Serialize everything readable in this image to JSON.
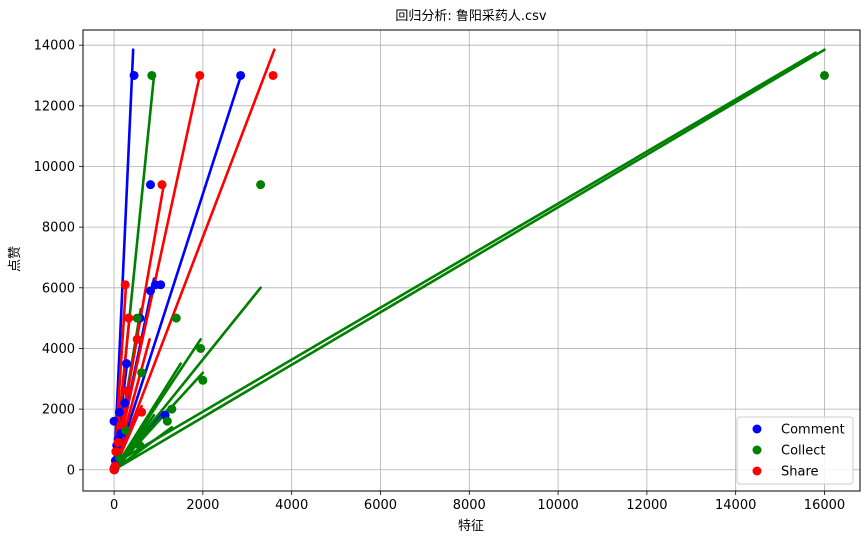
{
  "chart_data": {
    "type": "scatter",
    "title": "回归分析: 鲁阳采药人.csv",
    "xlabel": "特征",
    "ylabel": "点赞",
    "xlim": [
      -700,
      16800
    ],
    "ylim": [
      -700,
      14500
    ],
    "xticks": [
      0,
      2000,
      4000,
      6000,
      8000,
      10000,
      12000,
      14000,
      16000
    ],
    "yticks": [
      0,
      2000,
      4000,
      6000,
      8000,
      10000,
      12000,
      14000
    ],
    "grid": true,
    "legend_position": "bottom-right",
    "series": [
      {
        "name": "Comment",
        "color": "#0000ff",
        "points": [
          [
            450,
            13000
          ],
          [
            2850,
            13000
          ],
          [
            820,
            9400
          ],
          [
            1050,
            6100
          ],
          [
            930,
            6100
          ],
          [
            820,
            5900
          ],
          [
            580,
            5000
          ],
          [
            1150,
            1800
          ],
          [
            280,
            3500
          ],
          [
            0,
            1600
          ],
          [
            120,
            1900
          ],
          [
            60,
            800
          ],
          [
            30,
            300
          ],
          [
            10,
            0
          ],
          [
            0,
            50
          ],
          [
            150,
            1200
          ],
          [
            240,
            2200
          ],
          [
            90,
            1000
          ]
        ],
        "fit_lines": [
          [
            [
              0,
              0
            ],
            [
              430,
              13850
            ]
          ],
          [
            [
              0,
              0
            ],
            [
              2870,
              13050
            ]
          ],
          [
            [
              0,
              0
            ],
            [
              900,
              6300
            ]
          ],
          [
            [
              0,
              0
            ],
            [
              600,
              5100
            ]
          ],
          [
            [
              0,
              0
            ],
            [
              300,
              3600
            ]
          ],
          [
            [
              0,
              0
            ],
            [
              1100,
              1900
            ]
          ]
        ]
      },
      {
        "name": "Collect",
        "color": "#008000",
        "points": [
          [
            16000,
            13000
          ],
          [
            850,
            13000
          ],
          [
            3300,
            9400
          ],
          [
            1400,
            5000
          ],
          [
            1950,
            4000
          ],
          [
            2000,
            2950
          ],
          [
            1300,
            2000
          ],
          [
            1200,
            1600
          ],
          [
            580,
            800
          ],
          [
            620,
            3200
          ],
          [
            120,
            400
          ],
          [
            30,
            80
          ],
          [
            260,
            1300
          ],
          [
            160,
            350
          ],
          [
            520,
            5000
          ],
          [
            0,
            0
          ]
        ],
        "fit_lines": [
          [
            [
              0,
              0
            ],
            [
              16000,
              13850
            ]
          ],
          [
            [
              0,
              200
            ],
            [
              15800,
              13750
            ]
          ],
          [
            [
              0,
              0
            ],
            [
              900,
              13000
            ]
          ],
          [
            [
              0,
              0
            ],
            [
              3300,
              6000
            ]
          ],
          [
            [
              0,
              0
            ],
            [
              1950,
              4300
            ]
          ],
          [
            [
              0,
              0
            ],
            [
              2000,
              3200
            ]
          ],
          [
            [
              0,
              0
            ],
            [
              1500,
              3500
            ]
          ],
          [
            [
              0,
              0
            ],
            [
              1250,
              2050
            ]
          ],
          [
            [
              0,
              0
            ],
            [
              1300,
              1400
            ]
          ],
          [
            [
              0,
              0
            ],
            [
              600,
              5300
            ]
          ],
          [
            [
              0,
              0
            ],
            [
              900,
              1800
            ]
          ],
          [
            [
              0,
              0
            ],
            [
              520,
              1000
            ]
          ]
        ]
      },
      {
        "name": "Share",
        "color": "#ff0000",
        "points": [
          [
            1930,
            13000
          ],
          [
            3580,
            13000
          ],
          [
            1080,
            9400
          ],
          [
            250,
            6100
          ],
          [
            330,
            5000
          ],
          [
            620,
            1900
          ],
          [
            0,
            0
          ],
          [
            40,
            600
          ],
          [
            90,
            900
          ],
          [
            160,
            1500
          ],
          [
            300,
            2600
          ],
          [
            520,
            4300
          ],
          [
            20,
            120
          ]
        ],
        "fit_lines": [
          [
            [
              0,
              0
            ],
            [
              1930,
              13000
            ]
          ],
          [
            [
              0,
              0
            ],
            [
              3610,
              13850
            ]
          ],
          [
            [
              0,
              0
            ],
            [
              1120,
              9400
            ]
          ],
          [
            [
              0,
              0
            ],
            [
              270,
              6100
            ]
          ],
          [
            [
              0,
              0
            ],
            [
              350,
              5050
            ]
          ],
          [
            [
              0,
              0
            ],
            [
              800,
              4300
            ]
          ],
          [
            [
              0,
              0
            ],
            [
              620,
              2100
            ]
          ],
          [
            [
              0,
              0
            ],
            [
              300,
              2600
            ]
          ]
        ]
      }
    ]
  }
}
